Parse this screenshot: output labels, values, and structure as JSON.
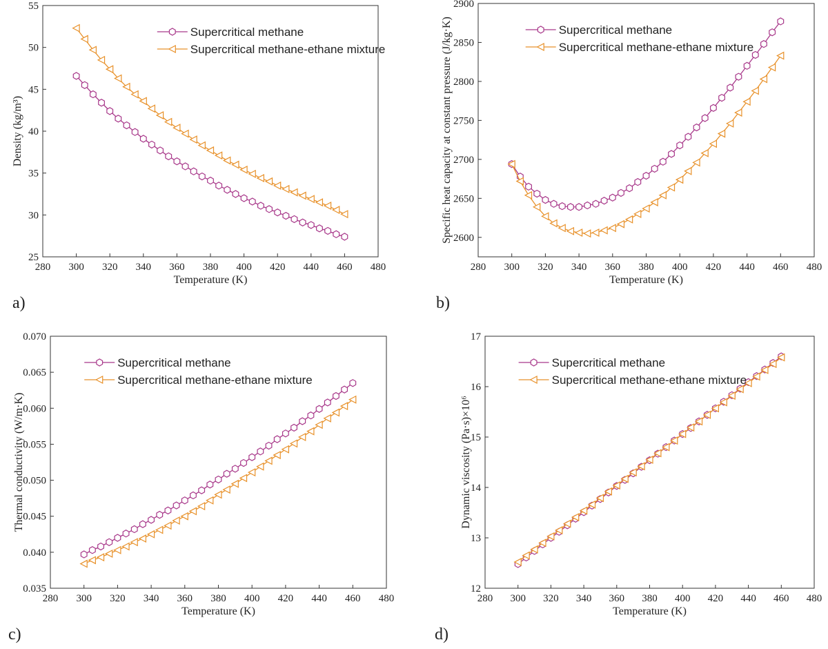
{
  "chart_data": [
    {
      "type": "line",
      "panel_label": "a)",
      "xlabel": "Temperature (K)",
      "ylabel": "Density (kg/m³)",
      "x": [
        300,
        305,
        310,
        315,
        320,
        325,
        330,
        335,
        340,
        345,
        350,
        355,
        360,
        365,
        370,
        375,
        380,
        385,
        390,
        395,
        400,
        405,
        410,
        415,
        420,
        425,
        430,
        435,
        440,
        445,
        450,
        455,
        460
      ],
      "series": [
        {
          "name": "Supercritical methane",
          "color": "#a8388a",
          "marker": "hexagon",
          "values": [
            46.6,
            45.5,
            44.4,
            43.4,
            42.4,
            41.5,
            40.7,
            39.9,
            39.1,
            38.4,
            37.7,
            37.0,
            36.4,
            35.8,
            35.2,
            34.6,
            34.1,
            33.5,
            33.0,
            32.5,
            32.0,
            31.6,
            31.1,
            30.7,
            30.3,
            29.9,
            29.5,
            29.1,
            28.8,
            28.4,
            28.1,
            27.7,
            27.4
          ]
        },
        {
          "name": "Supercritical methane-ethane mixture",
          "color": "#e8912a",
          "marker": "triangle-left",
          "values": [
            52.3,
            51.0,
            49.7,
            48.5,
            47.4,
            46.3,
            45.3,
            44.4,
            43.6,
            42.7,
            41.9,
            41.1,
            40.4,
            39.7,
            39.0,
            38.3,
            37.7,
            37.1,
            36.5,
            36.0,
            35.4,
            34.9,
            34.4,
            34.0,
            33.5,
            33.1,
            32.7,
            32.3,
            31.9,
            31.5,
            31.1,
            30.6,
            30.1
          ]
        }
      ],
      "xlim": [
        280,
        480
      ],
      "xticks": [
        280,
        300,
        320,
        340,
        360,
        380,
        400,
        420,
        440,
        460,
        480
      ],
      "ylim": [
        25,
        55
      ],
      "yticks": [
        25,
        30,
        35,
        40,
        45,
        50,
        55
      ],
      "legend": "upper center"
    },
    {
      "type": "line",
      "panel_label": "b)",
      "xlabel": "Temperature (K)",
      "ylabel": "Specific heat capacity at constant pressure (J/kg·K)",
      "x": [
        300,
        305,
        310,
        315,
        320,
        325,
        330,
        335,
        340,
        345,
        350,
        355,
        360,
        365,
        370,
        375,
        380,
        385,
        390,
        395,
        400,
        405,
        410,
        415,
        420,
        425,
        430,
        435,
        440,
        445,
        450,
        455,
        460
      ],
      "series": [
        {
          "name": "Supercritical methane",
          "color": "#a8388a",
          "marker": "hexagon",
          "values": [
            2694,
            2678,
            2665,
            2656,
            2648,
            2643,
            2640,
            2639,
            2639,
            2641,
            2643,
            2647,
            2651,
            2657,
            2663,
            2671,
            2679,
            2688,
            2697,
            2707,
            2718,
            2729,
            2741,
            2753,
            2766,
            2779,
            2792,
            2806,
            2820,
            2834,
            2848,
            2863,
            2877
          ]
        },
        {
          "name": "Supercritical methane-ethane mixture",
          "color": "#e8912a",
          "marker": "triangle-left",
          "values": [
            2694,
            2672,
            2654,
            2639,
            2627,
            2618,
            2612,
            2608,
            2606,
            2605,
            2606,
            2609,
            2612,
            2617,
            2623,
            2630,
            2637,
            2645,
            2654,
            2664,
            2674,
            2685,
            2696,
            2708,
            2720,
            2733,
            2746,
            2760,
            2774,
            2788,
            2803,
            2818,
            2833
          ]
        }
      ],
      "xlim": [
        280,
        480
      ],
      "xticks": [
        280,
        300,
        320,
        340,
        360,
        380,
        400,
        420,
        440,
        460,
        480
      ],
      "ylim": [
        2575,
        2900
      ],
      "yticks": [
        2600,
        2650,
        2700,
        2750,
        2800,
        2850,
        2900
      ],
      "legend": "upper left"
    },
    {
      "type": "line",
      "panel_label": "c)",
      "xlabel": "Temperature (K)",
      "ylabel": "Thermal conductivity (W/m·K)",
      "x": [
        300,
        305,
        310,
        315,
        320,
        325,
        330,
        335,
        340,
        345,
        350,
        355,
        360,
        365,
        370,
        375,
        380,
        385,
        390,
        395,
        400,
        405,
        410,
        415,
        420,
        425,
        430,
        435,
        440,
        445,
        450,
        455,
        460
      ],
      "series": [
        {
          "name": "Supercritical methane",
          "color": "#a8388a",
          "marker": "hexagon",
          "values": [
            0.0397,
            0.0403,
            0.0408,
            0.0414,
            0.042,
            0.0426,
            0.0432,
            0.0439,
            0.0445,
            0.0452,
            0.0458,
            0.0465,
            0.0472,
            0.0479,
            0.0486,
            0.0494,
            0.0501,
            0.0509,
            0.0516,
            0.0524,
            0.0532,
            0.054,
            0.0548,
            0.0557,
            0.0565,
            0.0573,
            0.0582,
            0.059,
            0.0599,
            0.0608,
            0.0617,
            0.0626,
            0.0635
          ]
        },
        {
          "name": "Supercritical methane-ethane mixture",
          "color": "#e8912a",
          "marker": "triangle-left",
          "values": [
            0.0384,
            0.0389,
            0.0393,
            0.0398,
            0.0403,
            0.0408,
            0.0414,
            0.0419,
            0.0425,
            0.0431,
            0.0437,
            0.0444,
            0.045,
            0.0457,
            0.0464,
            0.0472,
            0.048,
            0.0487,
            0.0495,
            0.0503,
            0.0511,
            0.0519,
            0.0527,
            0.0535,
            0.0543,
            0.0551,
            0.056,
            0.0568,
            0.0577,
            0.0586,
            0.0594,
            0.0603,
            0.0612
          ]
        }
      ],
      "xlim": [
        280,
        480
      ],
      "xticks": [
        280,
        300,
        320,
        340,
        360,
        380,
        400,
        420,
        440,
        460,
        480
      ],
      "ylim": [
        0.035,
        0.07
      ],
      "yticks": [
        0.035,
        {
          "value": 0.04,
          "label": "0.040"
        },
        0.045,
        {
          "value": 0.05,
          "label": "0.050"
        },
        0.055,
        {
          "value": 0.06,
          "label": "0.060"
        },
        0.065,
        {
          "value": 0.07,
          "label": "0.070"
        }
      ],
      "legend": "upper left"
    },
    {
      "type": "line",
      "panel_label": "d)",
      "xlabel": "Temperature (K)",
      "ylabel": "Dynamic viscosity (Pa·s)×10⁶",
      "x": [
        300,
        305,
        310,
        315,
        320,
        325,
        330,
        335,
        340,
        345,
        350,
        355,
        360,
        365,
        370,
        375,
        380,
        385,
        390,
        395,
        400,
        405,
        410,
        415,
        420,
        425,
        430,
        435,
        440,
        445,
        450,
        455,
        460
      ],
      "series": [
        {
          "name": "Supercritical methane",
          "color": "#a8388a",
          "marker": "hexagon",
          "values": [
            12.48,
            12.61,
            12.74,
            12.87,
            13.0,
            13.12,
            13.25,
            13.38,
            13.51,
            13.64,
            13.77,
            13.9,
            14.03,
            14.15,
            14.28,
            14.41,
            14.54,
            14.67,
            14.8,
            14.93,
            15.06,
            15.18,
            15.31,
            15.44,
            15.57,
            15.7,
            15.83,
            15.96,
            16.09,
            16.21,
            16.34,
            16.47,
            16.6
          ]
        },
        {
          "name": "Supercritical methane-ethane mixture",
          "color": "#e8912a",
          "marker": "triangle-left",
          "values": [
            12.52,
            12.65,
            12.77,
            12.9,
            13.03,
            13.15,
            13.28,
            13.41,
            13.54,
            13.66,
            13.79,
            13.92,
            14.04,
            14.17,
            14.3,
            14.42,
            14.55,
            14.68,
            14.8,
            14.93,
            15.06,
            15.19,
            15.31,
            15.44,
            15.57,
            15.69,
            15.82,
            15.95,
            16.07,
            16.2,
            16.33,
            16.45,
            16.58
          ]
        }
      ],
      "xlim": [
        280,
        480
      ],
      "xticks": [
        280,
        300,
        320,
        340,
        360,
        380,
        400,
        420,
        440,
        460,
        480
      ],
      "ylim": [
        12,
        17
      ],
      "yticks": [
        12,
        13,
        14,
        15,
        16,
        17
      ],
      "legend": "upper left"
    }
  ]
}
